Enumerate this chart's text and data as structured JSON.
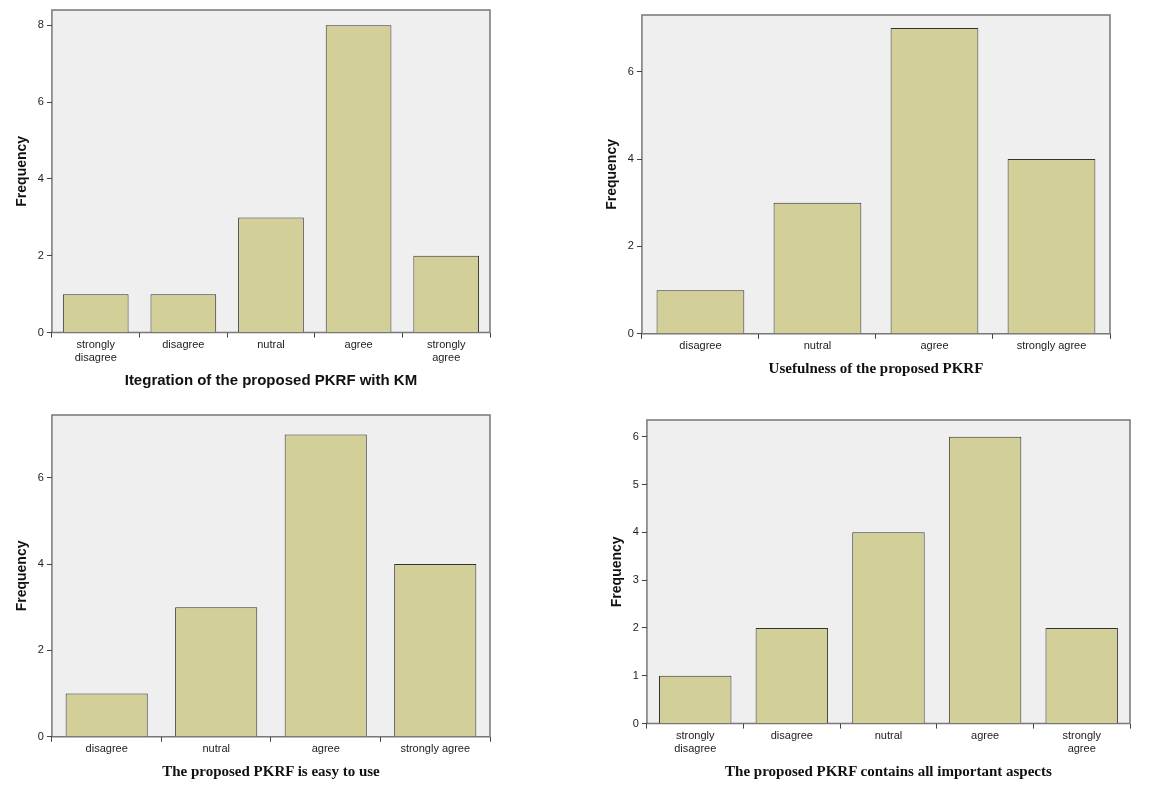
{
  "chart_data": [
    {
      "type": "bar",
      "xlabel": "Itegration of the proposed PKRF with KM",
      "ylabel": "Frequency",
      "categories": [
        "strongly disagree",
        "disagree",
        "nutral",
        "agree",
        "strongly agree"
      ],
      "values": [
        1,
        1,
        3,
        8,
        2
      ],
      "color": "#d3cf98",
      "ylim": [
        0,
        8.4
      ],
      "yticks": [
        0,
        2,
        4,
        6,
        8
      ],
      "grid": false,
      "legend": false
    },
    {
      "type": "bar",
      "xlabel": "Usefulness of the proposed PKRF",
      "ylabel": "Frequency",
      "categories": [
        "disagree",
        "nutral",
        "agree",
        "strongly agree"
      ],
      "values": [
        1,
        3,
        7,
        4
      ],
      "color": "#d3cf98",
      "ylim": [
        0,
        7.3
      ],
      "yticks": [
        0,
        2,
        4,
        6
      ],
      "grid": false,
      "legend": false
    },
    {
      "type": "bar",
      "xlabel": "The proposed PKRF is easy to use",
      "ylabel": "Frequency",
      "categories": [
        "disagree",
        "nutral",
        "agree",
        "strongly agree"
      ],
      "values": [
        1,
        3,
        7,
        4
      ],
      "color": "#d3cf98",
      "ylim": [
        0,
        7.45
      ],
      "yticks": [
        0,
        2,
        4,
        6
      ],
      "grid": false,
      "legend": false
    },
    {
      "type": "bar",
      "xlabel": "The proposed PKRF contains all important aspects",
      "ylabel": "Frequency",
      "categories": [
        "strongly disagree",
        "disagree",
        "nutral",
        "agree",
        "strongly agree"
      ],
      "values": [
        1,
        2,
        4,
        6,
        2
      ],
      "color": "#d3cf98",
      "ylim": [
        0,
        6.35
      ],
      "yticks": [
        0,
        1,
        2,
        3,
        4,
        5,
        6
      ],
      "grid": false,
      "legend": false
    }
  ]
}
